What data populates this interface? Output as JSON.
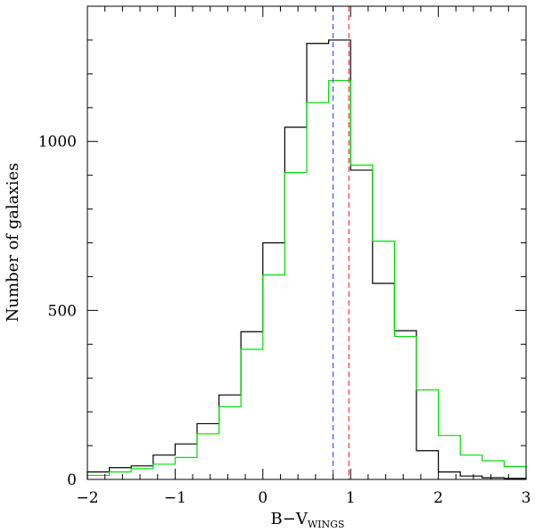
{
  "chart_data": {
    "type": "step",
    "xlabel_main": "B−V",
    "xlabel_sub": "WINGS",
    "ylabel": "Number of galaxies",
    "xlim": [
      -2,
      3
    ],
    "ylim": [
      0,
      1400
    ],
    "x_ticks": [
      -2,
      -1,
      0,
      1,
      2,
      3
    ],
    "x_tick_labels": [
      "−2",
      "−1",
      "0",
      "1",
      "2",
      "3"
    ],
    "y_ticks": [
      0,
      500,
      1000
    ],
    "y_tick_labels": [
      "0",
      "500",
      "1000"
    ],
    "bin_edges": [
      -2,
      -1.75,
      -1.5,
      -1.25,
      -1,
      -0.75,
      -0.5,
      -0.25,
      0,
      0.25,
      0.5,
      0.75,
      1,
      1.25,
      1.5,
      1.75,
      2,
      2.25,
      2.5,
      2.75,
      3
    ],
    "series": [
      {
        "color": "#000000",
        "values": [
          22,
          35,
          40,
          72,
          105,
          165,
          250,
          437,
          700,
          1042,
          1290,
          1300,
          915,
          580,
          440,
          85,
          22,
          10,
          5,
          3
        ]
      },
      {
        "color": "#00e000",
        "values": [
          12,
          22,
          32,
          45,
          65,
          135,
          215,
          385,
          605,
          908,
          1115,
          1180,
          930,
          705,
          423,
          265,
          130,
          72,
          55,
          38
        ]
      }
    ],
    "reference_lines": [
      {
        "x": 0.8,
        "color": "#4a4aff",
        "style": "dashed"
      },
      {
        "x": 0.98,
        "color": "#ff3030",
        "style": "dashed"
      }
    ]
  }
}
